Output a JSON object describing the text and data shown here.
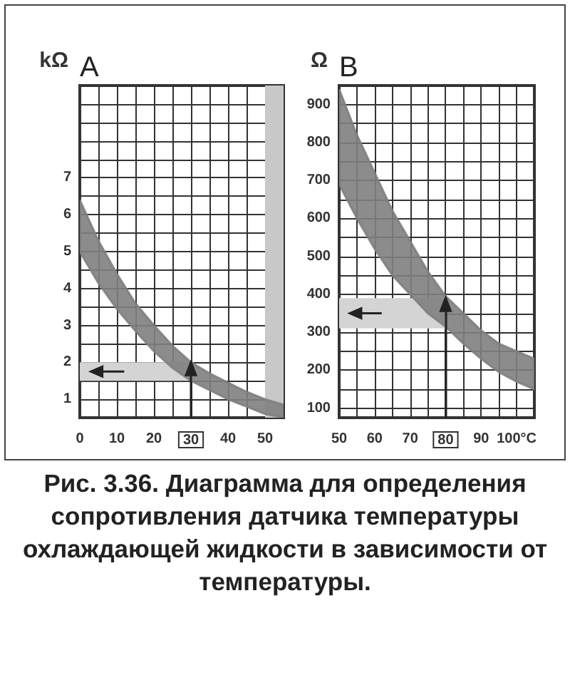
{
  "chart_data": [
    {
      "type": "area",
      "title": "A",
      "ylabel": "kΩ",
      "x": [
        0,
        5,
        10,
        15,
        20,
        25,
        30,
        35,
        40,
        45,
        50,
        55
      ],
      "series": [
        {
          "color": "#808080",
          "values": [
            null,
            null,
            null,
            null,
            null,
            null,
            null,
            null,
            null,
            null,
            null,
            null
          ],
          "upper": [
            6.4,
            5.3,
            4.4,
            3.6,
            3.0,
            2.45,
            2.0,
            1.7,
            1.45,
            1.2,
            1.0,
            0.85
          ],
          "lower": [
            5.0,
            4.15,
            3.45,
            2.85,
            2.3,
            1.85,
            1.5,
            1.25,
            1.0,
            0.8,
            0.6,
            0.5
          ]
        }
      ],
      "xlim": [
        0,
        55
      ],
      "xticks": [
        0,
        {
          "value": 5,
          "label": null
        },
        10,
        {
          "value": 15,
          "label": null
        },
        20,
        {
          "value": 25,
          "label": null
        },
        30,
        {
          "value": 35,
          "label": null
        },
        40,
        {
          "value": 45,
          "label": null
        },
        50
      ],
      "ylim": [
        0.5,
        9.5
      ],
      "yticks": [
        1,
        {
          "value": 1.5,
          "label": null
        },
        2,
        {
          "value": 2.5,
          "label": null
        },
        3,
        {
          "value": 3.5,
          "label": null
        },
        4,
        {
          "value": 4.5,
          "label": null
        },
        5,
        {
          "value": 5.5,
          "label": null
        },
        6,
        {
          "value": 6.5,
          "label": null
        },
        7,
        {
          "value": 7.5,
          "label": null
        },
        {
          "value": 8,
          "label": null
        },
        {
          "value": 8.5,
          "label": null
        },
        {
          "value": 9,
          "label": null
        }
      ],
      "grid": true,
      "bands": [
        {
          "axis": "y",
          "from": 1.5,
          "to": 2.0,
          "color": "#d4d4d4"
        },
        {
          "axis": "x",
          "from": 50,
          "to": 55,
          "color": "#c8c8c8"
        }
      ],
      "ref_lines": [
        {
          "axis": "x",
          "value": 30
        }
      ],
      "annotations": [
        "Рис. 3.36. Диаграмма для определения сопротивления датчика температуры охлаждающей жидкости в зависимости от температуры."
      ]
    },
    {
      "type": "area",
      "title": "B",
      "ylabel": "Ω",
      "x": [
        50,
        55,
        60,
        65,
        70,
        75,
        80,
        85,
        90,
        95,
        100,
        105
      ],
      "series": [
        {
          "color": "#808080",
          "values": [
            null,
            null,
            null,
            null,
            null,
            null,
            null,
            null,
            null,
            null,
            null,
            null
          ],
          "upper": [
            940,
            820,
            720,
            620,
            540,
            460,
            395,
            350,
            305,
            270,
            250,
            230
          ],
          "lower": [
            690,
            600,
            520,
            450,
            400,
            350,
            315,
            270,
            230,
            195,
            170,
            150
          ]
        }
      ],
      "xlim": [
        50,
        105
      ],
      "xticks": [
        50,
        {
          "value": 55,
          "label": null
        },
        60,
        {
          "value": 65,
          "label": null
        },
        70,
        {
          "value": 75,
          "label": null
        },
        80,
        {
          "value": 85,
          "label": null
        },
        90,
        {
          "value": 95,
          "label": null
        },
        {
          "value": 100,
          "label": "100°C"
        }
      ],
      "ylim": [
        75,
        950
      ],
      "yticks": [
        100,
        {
          "value": 150,
          "label": null
        },
        200,
        {
          "value": 250,
          "label": null
        },
        300,
        {
          "value": 350,
          "label": null
        },
        400,
        {
          "value": 450,
          "label": null
        },
        500,
        {
          "value": 550,
          "label": null
        },
        600,
        {
          "value": 650,
          "label": null
        },
        700,
        {
          "value": 750,
          "label": null
        },
        800,
        {
          "value": 850,
          "label": null
        },
        900
      ],
      "grid": true,
      "bands": [
        {
          "axis": "y",
          "from": 310,
          "to": 390,
          "color": "#d4d4d4"
        }
      ],
      "ref_lines": [
        {
          "axis": "x",
          "value": 80
        }
      ]
    }
  ]
}
